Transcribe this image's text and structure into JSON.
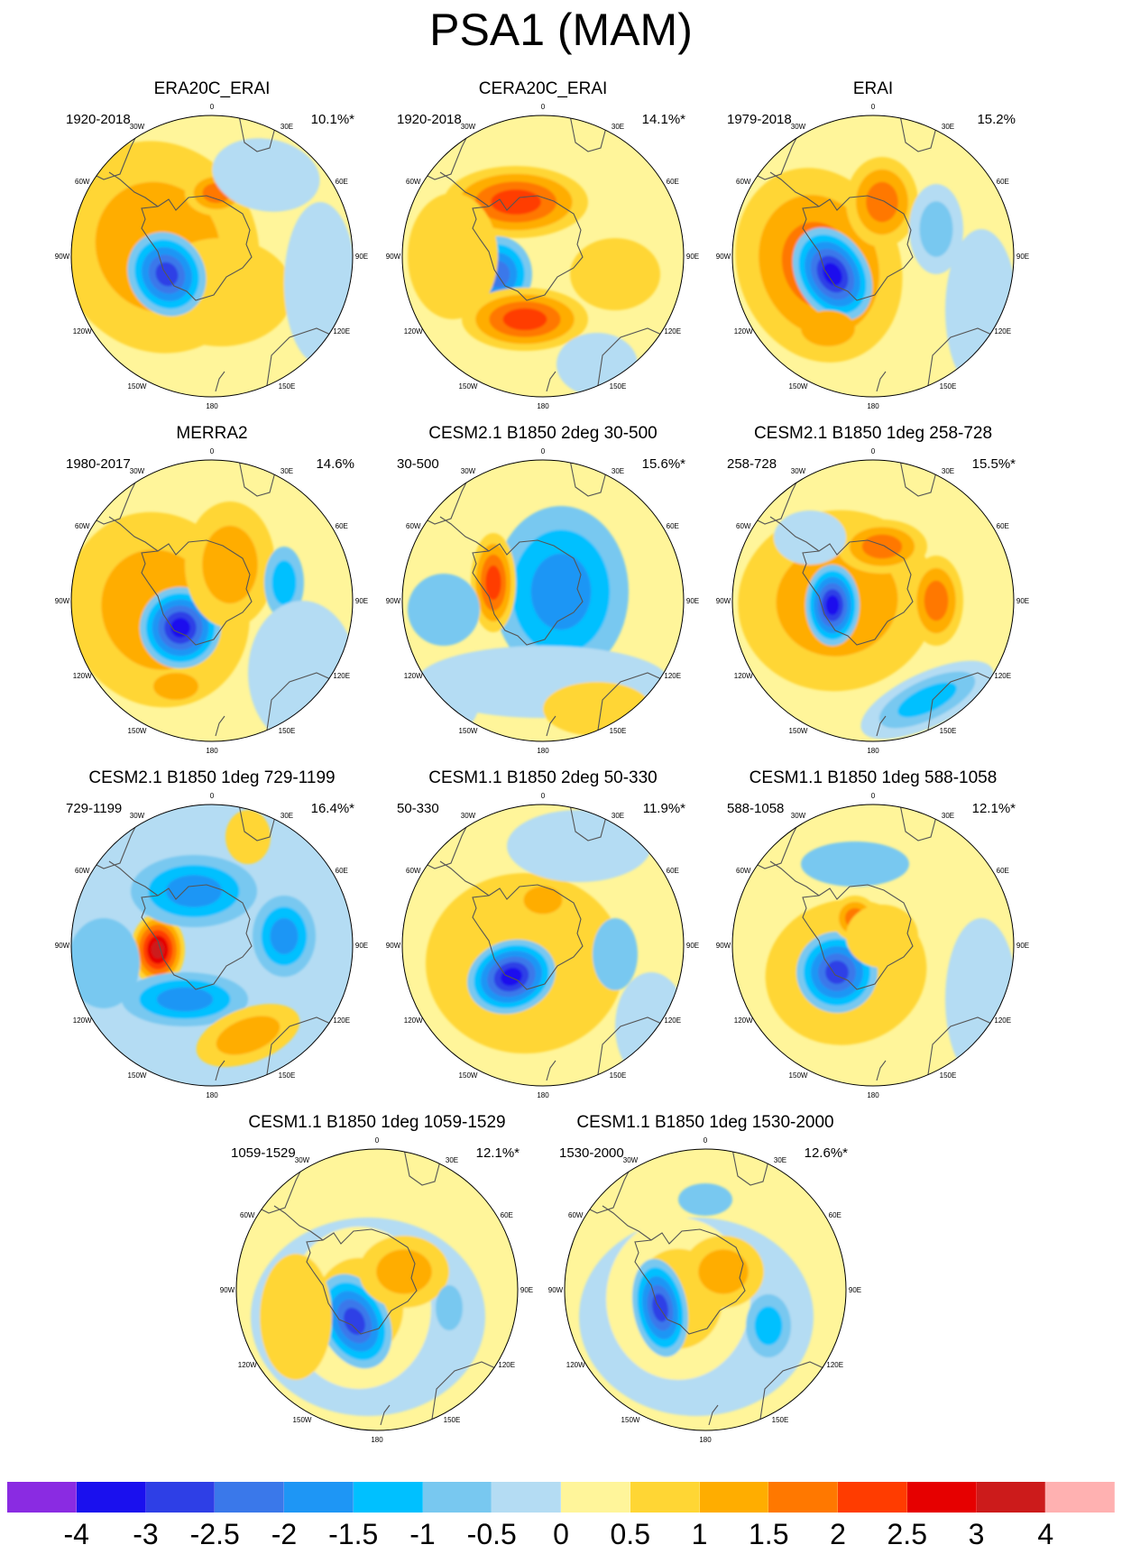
{
  "title": "PSA1 (MAM)",
  "tick_labels": {
    "lon0": "0",
    "lon30e": "30E",
    "lon60e": "60E",
    "lon90e": "90E",
    "lon120e": "120E",
    "lon150e": "150E",
    "lon180": "180",
    "lon150w": "150W",
    "lon120w": "120W",
    "lon90w": "90W",
    "lon60w": "60W",
    "lon30w": "30W"
  },
  "panels": [
    {
      "title": "ERA20C_ERAI",
      "period": "1920-2018",
      "variance": "10.1%*",
      "pattern": "obs1"
    },
    {
      "title": "CERA20C_ERAI",
      "period": "1920-2018",
      "variance": "14.1%*",
      "pattern": "obs2"
    },
    {
      "title": "ERAI",
      "period": "1979-2018",
      "variance": "15.2%",
      "pattern": "obs3"
    },
    {
      "title": "MERRA2",
      "period": "1980-2017",
      "variance": "14.6%",
      "pattern": "obs4"
    },
    {
      "title": "CESM2.1 B1850 2deg 30-500",
      "period": "30-500",
      "variance": "15.6%*",
      "pattern": "m1"
    },
    {
      "title": "CESM2.1 B1850 1deg 258-728",
      "period": "258-728",
      "variance": "15.5%*",
      "pattern": "m2"
    },
    {
      "title": "CESM2.1 B1850 1deg 729-1199",
      "period": "729-1199",
      "variance": "16.4%*",
      "pattern": "m3"
    },
    {
      "title": "CESM1.1 B1850 2deg 50-330",
      "period": "50-330",
      "variance": "11.9%*",
      "pattern": "m4"
    },
    {
      "title": "CESM1.1 B1850 1deg 588-1058",
      "period": "588-1058",
      "variance": "12.1%*",
      "pattern": "m5"
    },
    {
      "title": "CESM1.1 B1850 1deg 1059-1529",
      "period": "1059-1529",
      "variance": "12.1%*",
      "pattern": "m6"
    },
    {
      "title": "CESM1.1 B1850 1deg 1530-2000",
      "period": "1530-2000",
      "variance": "12.6%*",
      "pattern": "m7"
    }
  ],
  "colorbar": {
    "labels": [
      "-4",
      "-3",
      "-2.5",
      "-2",
      "-1.5",
      "-1",
      "-0.5",
      "0",
      "0.5",
      "1",
      "1.5",
      "2",
      "2.5",
      "3",
      "4"
    ],
    "colors": [
      "#8a2be2",
      "#1a10ee",
      "#2e3fe6",
      "#3a78ea",
      "#1e96f5",
      "#00c0ff",
      "#78c8f0",
      "#b4dcf3",
      "#fff59a",
      "#ffd634",
      "#ffad00",
      "#ff7800",
      "#ff3c00",
      "#e60000",
      "#cc1b1b",
      "#ffb1b1"
    ]
  }
}
